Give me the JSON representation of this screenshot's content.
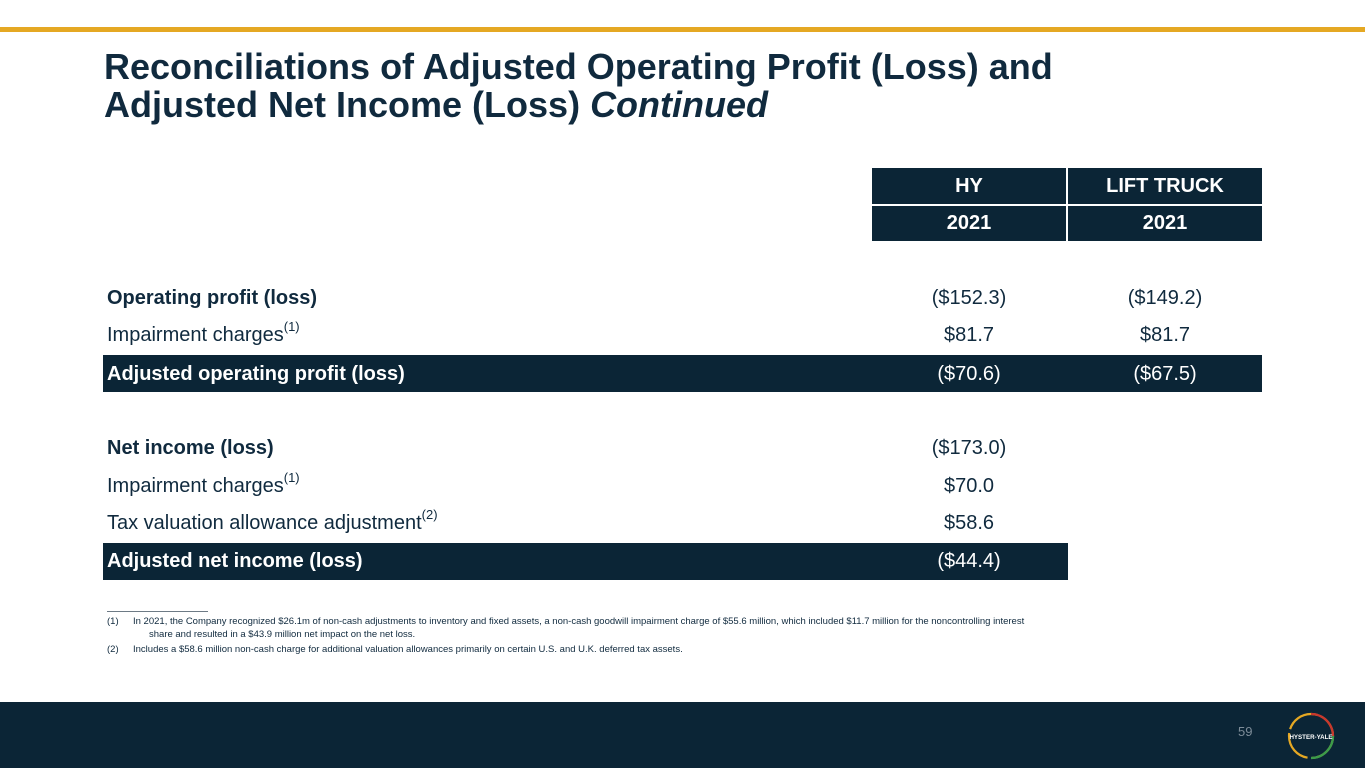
{
  "title": {
    "line1": "Reconciliations of Adjusted Operating Profit (Loss) and",
    "line2_main": "Adjusted Net Income (Loss) ",
    "line2_italic": "Continued"
  },
  "columns": {
    "col1_header": "HY",
    "col2_header": "LIFT TRUCK",
    "col1_year": "2021",
    "col2_year": "2021"
  },
  "operating": {
    "op_profit": {
      "label": "Operating profit (loss)",
      "hy": "($152.3)",
      "lt": "($149.2)"
    },
    "impairment": {
      "label": "Impairment charges",
      "sup": "(1)",
      "hy": "$81.7",
      "lt": "$81.7"
    },
    "adjusted": {
      "label": "Adjusted operating profit (loss)",
      "hy": "($70.6)",
      "lt": "($67.5)"
    }
  },
  "net_income": {
    "net": {
      "label": "Net income (loss)",
      "hy": "($173.0)"
    },
    "impairment": {
      "label": "Impairment charges",
      "sup": "(1)",
      "hy": "$70.0"
    },
    "tax": {
      "label": "Tax valuation allowance adjustment",
      "sup": "(2)",
      "hy": "$58.6"
    },
    "adjusted": {
      "label": "Adjusted net income (loss)",
      "hy": "($44.4)"
    }
  },
  "footnotes": {
    "fn1_num": "(1)",
    "fn1_line1": "In 2021, the Company recognized $26.1m of non-cash adjustments to inventory and fixed assets, a non-cash goodwill impairment charge of $55.6 million, which included $11.7 million for the noncontrolling interest",
    "fn1_line2": "share and resulted in a $43.9 million net impact on the net loss.",
    "fn2_num": "(2)",
    "fn2_line1": "Includes a $58.6 million non-cash charge for additional valuation allowances primarily on certain U.S. and U.K. deferred tax assets."
  },
  "footer": {
    "page_number": "59",
    "logo_text": "HYSTER-YALE",
    "logo_icon": "hyster-yale-ring-logo"
  },
  "colors": {
    "accent": "#e5a823",
    "navy": "#0b2536"
  }
}
